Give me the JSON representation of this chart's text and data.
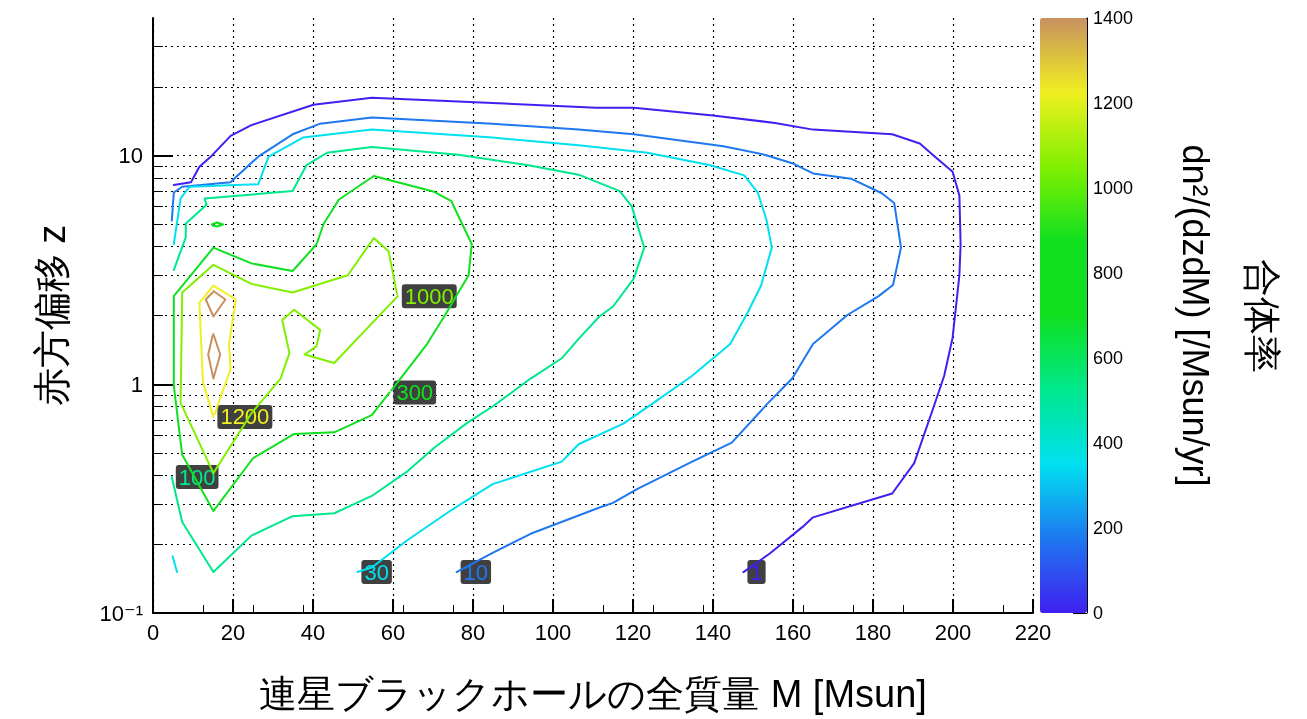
{
  "chart_data": {
    "type": "line",
    "xlabel": "連星ブラックホールの全質量 M [Msun]",
    "ylabel": "赤方偏移 z",
    "clabel": "dn²/(dzdM) [/Msun/yr]",
    "annotations": [
      "合体率"
    ],
    "xlim": [
      0,
      220
    ],
    "xticks": [
      0,
      20,
      40,
      60,
      80,
      100,
      120,
      140,
      160,
      180,
      200,
      220
    ],
    "ylim": [
      0.1,
      40
    ],
    "yticks": [
      {
        "value": 0.1,
        "label": "10⁻¹"
      },
      1,
      10
    ],
    "log": "y",
    "clim": [
      0,
      1400
    ],
    "cticks": [
      0,
      200,
      400,
      600,
      800,
      1000,
      1200,
      1400
    ],
    "grid": true,
    "legend": false,
    "marker": "none",
    "line_style": "solid",
    "series": [
      {
        "name": "1",
        "color": "#4020f0",
        "x": [
          147.6,
          154.2,
          162.4,
          165,
          184.8,
          190.3,
          195.2,
          197.8,
          199.9,
          201.6,
          201.9,
          201.6,
          199.9,
          195.2,
          191.7,
          184.8,
          165,
          155.5,
          140,
          120.2,
          110.8,
          84.9,
          54.7,
          40.1,
          24.6,
          19.4,
          14.7,
          11.6,
          9.5,
          5.2
        ],
        "values": [
          0.151,
          0.182,
          0.238,
          0.262,
          0.333,
          0.452,
          0.8,
          1.09,
          1.6,
          3.0,
          4.1,
          6.7,
          8.5,
          10.0,
          11.3,
          12.4,
          13.0,
          13.9,
          15.0,
          16.2,
          16.2,
          17.0,
          17.9,
          16.7,
          13.6,
          12.2,
          10.0,
          8.95,
          7.65,
          7.45
        ]
      },
      {
        "name": "10",
        "color": "#1e78f0",
        "x": [
          75.9,
          84.9,
          94.4,
          111.3,
          115,
          121,
          134.8,
          144.7,
          153.8,
          159.8,
          165,
          173.6,
          181.4,
          185,
          187,
          185.3,
          182.2,
          174.5,
          165,
          159.8,
          152.9,
          142.6,
          120.2,
          106.4,
          84.9,
          54.7,
          41.8,
          34.9,
          26.3,
          20.3,
          19.4,
          7.3,
          5.2,
          4.7
        ],
        "values": [
          0.151,
          0.183,
          0.222,
          0.288,
          0.303,
          0.348,
          0.459,
          0.556,
          0.83,
          1.06,
          1.5,
          2.01,
          2.43,
          2.72,
          3.96,
          6.21,
          6.85,
          7.93,
          8.36,
          9.27,
          10.1,
          11.0,
          12.4,
          13.0,
          13.8,
          14.7,
          13.8,
          12.4,
          9.9,
          7.93,
          7.65,
          7.31,
          6.9,
          5.2
        ]
      },
      {
        "name": "30",
        "color": "#00e0f0",
        "x": [
          51.1,
          54.7,
          63.4,
          74.6,
          84.9,
          102.2,
          106.4,
          117.6,
          124.5,
          134.8,
          144.3,
          148.6,
          152,
          154.7,
          153.4,
          151.2,
          147.8,
          139.1,
          123.6,
          106.4,
          84.9,
          54.7,
          37.5,
          28.9,
          26.3,
          9.1,
          6.9,
          5.2,
          null,
          4.9,
          6.0
        ],
        "values": [
          0.151,
          0.158,
          0.207,
          0.282,
          0.366,
          0.459,
          0.547,
          0.673,
          0.815,
          1.09,
          1.5,
          2.05,
          2.7,
          3.96,
          5.22,
          6.9,
          8.2,
          9.1,
          10.3,
          11.1,
          12.0,
          13.0,
          12.0,
          9.9,
          7.5,
          7.31,
          6.5,
          4.1,
          null,
          0.177,
          0.151
        ]
      },
      {
        "name": "100",
        "color": "#00e88c",
        "x": [
          4.7,
          7.3,
          15.1,
          24.6,
          34.9,
          45.3,
          54.7,
          63.4,
          70.3,
          78.9,
          84.9,
          94.4,
          102.2,
          106.4,
          111.6,
          115,
          120.2,
          122.8,
          119.7,
          116.7,
          106.4,
          93.5,
          76.3,
          54.7,
          43.5,
          38.4,
          34.9,
          12.9,
          13.4,
          8.2,
          8.2,
          5.2
        ],
        "values": [
          0.393,
          0.25,
          0.151,
          0.218,
          0.265,
          0.273,
          0.325,
          0.414,
          0.528,
          0.685,
          0.8,
          1.06,
          1.3,
          1.58,
          1.98,
          2.19,
          2.9,
          3.96,
          6.0,
          7.0,
          8.26,
          9.1,
          10.1,
          10.9,
          10.3,
          9.1,
          7.0,
          6.5,
          6.1,
          5.05,
          4.4,
          3.16
        ]
      },
      {
        "name": "300",
        "color": "#10e020",
        "x": [
          59.1,
          54.7,
          45.3,
          35.3,
          25,
          15.1,
          7.3,
          5.2,
          5.2,
          15.1,
          24.6,
          34.9,
          40.9,
          42.7,
          46.5,
          55.2,
          70.3,
          74.6,
          79.7,
          78.9,
          72.8,
          68.5,
          59.6
        ],
        "values": [
          0.92,
          0.734,
          0.617,
          0.607,
          0.475,
          0.279,
          0.492,
          0.986,
          2.43,
          3.96,
          3.38,
          3.13,
          4.1,
          5.05,
          6.43,
          8.15,
          6.95,
          6.32,
          4.1,
          3.0,
          1.98,
          1.5,
          0.94
        ]
      },
      {
        "color": "#10e020",
        "x": [
          14.7,
          16.0,
          17.5,
          16.0,
          14.9
        ],
        "values": [
          5.0,
          5.1,
          5.0,
          4.9,
          4.95
        ]
      },
      {
        "name": "1000",
        "color": "#80f000",
        "x": [
          61.2,
          45.3,
          37.9,
          40.9,
          41.8,
          35.3,
          32.3,
          34.1,
          31.9,
          24.6,
          15.1,
          6.9,
          7.3,
          15.1,
          24.6,
          34.9,
          48.7,
          55.2,
          58.9,
          61.0
        ],
        "values": [
          2.43,
          1.24,
          1.35,
          1.47,
          1.73,
          2.12,
          1.91,
          1.37,
          1.06,
          0.747,
          0.409,
          0.83,
          2.52,
          3.33,
          2.75,
          2.52,
          3.0,
          4.36,
          3.82,
          2.48
        ]
      },
      {
        "name": "1200",
        "color": "#f0f020",
        "x": [
          15.1,
          12.5,
          11.6,
          15.1,
          20.7,
          19,
          19.4,
          15.4
        ],
        "values": [
          0.72,
          1.02,
          2.27,
          2.7,
          2.35,
          1.5,
          1.17,
          0.74
        ]
      },
      {
        "color": "#c89060",
        "x": [
          15.1,
          18.1,
          15.1,
          13.2,
          14.9,
          null,
          15.1,
          16.8,
          15.1,
          13.8,
          14.9
        ],
        "values": [
          2.56,
          2.35,
          1.98,
          2.35,
          2.52,
          null,
          1.66,
          1.35,
          1.06,
          1.35,
          1.63
        ]
      }
    ]
  }
}
